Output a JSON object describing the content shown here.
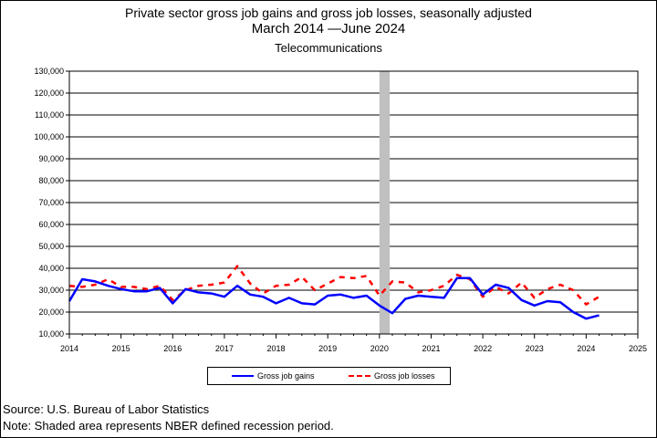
{
  "title": {
    "line1": "Private sector gross job gains and gross job losses, seasonally adjusted",
    "line2": "March 2014 —June 2024",
    "line3": "Telecommunications"
  },
  "notes": {
    "source": "Source: U.S. Bureau of Labor Statistics",
    "shading": "Note: Shaded area represents NBER defined recession period."
  },
  "colors": {
    "gains": "#0000ff",
    "losses": "#ff0000",
    "recession": "#c0c0c0"
  },
  "chart_data": {
    "type": "line",
    "title": "Private sector gross job gains and gross job losses, seasonally adjusted",
    "subtitle": "March 2014 —June 2024",
    "industry": "Telecommunications",
    "xlabel": "",
    "ylabel": "",
    "xlim": [
      2014,
      2025
    ],
    "ylim": [
      10000,
      130000
    ],
    "x_ticks": [
      "2014",
      "2015",
      "2016",
      "2017",
      "2018",
      "2019",
      "2020",
      "2021",
      "2022",
      "2023",
      "2024",
      "2025"
    ],
    "y_ticks": [
      "10,000",
      "20,000",
      "30,000",
      "40,000",
      "50,000",
      "60,000",
      "70,000",
      "80,000",
      "90,000",
      "100,000",
      "110,000",
      "120,000",
      "130,000"
    ],
    "grid": "horizontal",
    "legend_position": "bottom",
    "recession_shading": [
      2020.0,
      2020.2
    ],
    "quarters": [
      "2014-Q1",
      "2014-Q2",
      "2014-Q3",
      "2014-Q4",
      "2015-Q1",
      "2015-Q2",
      "2015-Q3",
      "2015-Q4",
      "2016-Q1",
      "2016-Q2",
      "2016-Q3",
      "2016-Q4",
      "2017-Q1",
      "2017-Q2",
      "2017-Q3",
      "2017-Q4",
      "2018-Q1",
      "2018-Q2",
      "2018-Q3",
      "2018-Q4",
      "2019-Q1",
      "2019-Q2",
      "2019-Q3",
      "2019-Q4",
      "2020-Q1",
      "2020-Q2",
      "2020-Q3",
      "2020-Q4",
      "2021-Q1",
      "2021-Q2",
      "2021-Q3",
      "2021-Q4",
      "2022-Q1",
      "2022-Q2",
      "2022-Q3",
      "2022-Q4",
      "2023-Q1",
      "2023-Q2",
      "2023-Q3",
      "2023-Q4",
      "2024-Q1",
      "2024-Q2"
    ],
    "x": [
      2014.0,
      2014.25,
      2014.5,
      2014.75,
      2015.0,
      2015.25,
      2015.5,
      2015.75,
      2016.0,
      2016.25,
      2016.5,
      2016.75,
      2017.0,
      2017.25,
      2017.5,
      2017.75,
      2018.0,
      2018.25,
      2018.5,
      2018.75,
      2019.0,
      2019.25,
      2019.5,
      2019.75,
      2020.0,
      2020.25,
      2020.5,
      2020.75,
      2021.0,
      2021.25,
      2021.5,
      2021.75,
      2022.0,
      2022.25,
      2022.5,
      2022.75,
      2023.0,
      2023.25,
      2023.5,
      2023.75,
      2024.0,
      2024.25
    ],
    "series": [
      {
        "name": "Gross job gains",
        "style": "solid",
        "values": [
          25000,
          35000,
          34000,
          32000,
          30500,
          29500,
          29500,
          31000,
          24000,
          30500,
          29000,
          28500,
          27000,
          32000,
          28000,
          27000,
          24000,
          26500,
          24000,
          23500,
          27500,
          28000,
          26500,
          27500,
          23000,
          19500,
          26000,
          27500,
          27000,
          26500,
          35500,
          35500,
          28000,
          32500,
          31000,
          25500,
          23000,
          25000,
          24500,
          20000,
          17000,
          18500
        ]
      },
      {
        "name": "Gross job losses",
        "style": "dashed",
        "values": [
          32000,
          31500,
          32500,
          35000,
          31500,
          31500,
          30500,
          32000,
          25500,
          30000,
          32000,
          32500,
          33500,
          41000,
          33000,
          28500,
          32000,
          32500,
          36000,
          30000,
          33000,
          36000,
          35500,
          36500,
          27500,
          34000,
          33500,
          29000,
          30000,
          32000,
          37000,
          35000,
          27000,
          31500,
          28500,
          33500,
          26500,
          30500,
          32500,
          30000,
          23500,
          27000
        ]
      }
    ]
  }
}
